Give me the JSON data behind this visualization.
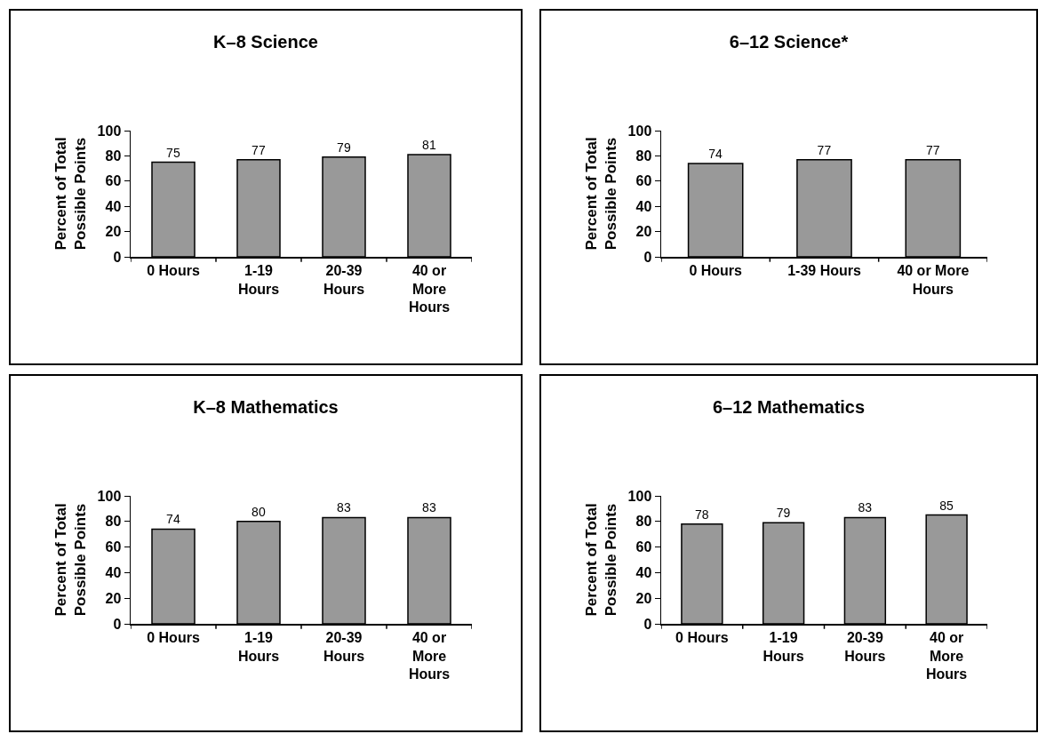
{
  "chart_data": [
    {
      "type": "bar",
      "title": "K–8 Science",
      "ylabel": "Percent of Total\nPossible Points",
      "categories": [
        "0 Hours",
        "1-19\nHours",
        "20-39\nHours",
        "40 or\nMore\nHours"
      ],
      "values": [
        75,
        77,
        79,
        81
      ],
      "color": "#999999",
      "ylim": [
        0,
        100
      ],
      "yticks": [
        0,
        20,
        40,
        60,
        80,
        100
      ],
      "grid": false,
      "data_labels": true
    },
    {
      "type": "bar",
      "title": "6–12 Science*",
      "ylabel": "Percent of Total\nPossible Points",
      "categories": [
        "0 Hours",
        "1-39 Hours",
        "40 or More\nHours"
      ],
      "values": [
        74,
        77,
        77
      ],
      "color": "#999999",
      "ylim": [
        0,
        100
      ],
      "yticks": [
        0,
        20,
        40,
        60,
        80,
        100
      ],
      "grid": false,
      "data_labels": true
    },
    {
      "type": "bar",
      "title": "K–8 Mathematics",
      "ylabel": "Percent of Total\nPossible Points",
      "categories": [
        "0 Hours",
        "1-19\nHours",
        "20-39\nHours",
        "40 or\nMore\nHours"
      ],
      "values": [
        74,
        80,
        83,
        83
      ],
      "color": "#999999",
      "ylim": [
        0,
        100
      ],
      "yticks": [
        0,
        20,
        40,
        60,
        80,
        100
      ],
      "grid": false,
      "data_labels": true
    },
    {
      "type": "bar",
      "title": "6–12 Mathematics",
      "ylabel": "Percent of Total\nPossible Points",
      "categories": [
        "0 Hours",
        "1-19\nHours",
        "20-39\nHours",
        "40 or\nMore\nHours"
      ],
      "values": [
        78,
        79,
        83,
        85
      ],
      "color": "#999999",
      "ylim": [
        0,
        100
      ],
      "yticks": [
        0,
        20,
        40,
        60,
        80,
        100
      ],
      "grid": false,
      "data_labels": true
    }
  ]
}
